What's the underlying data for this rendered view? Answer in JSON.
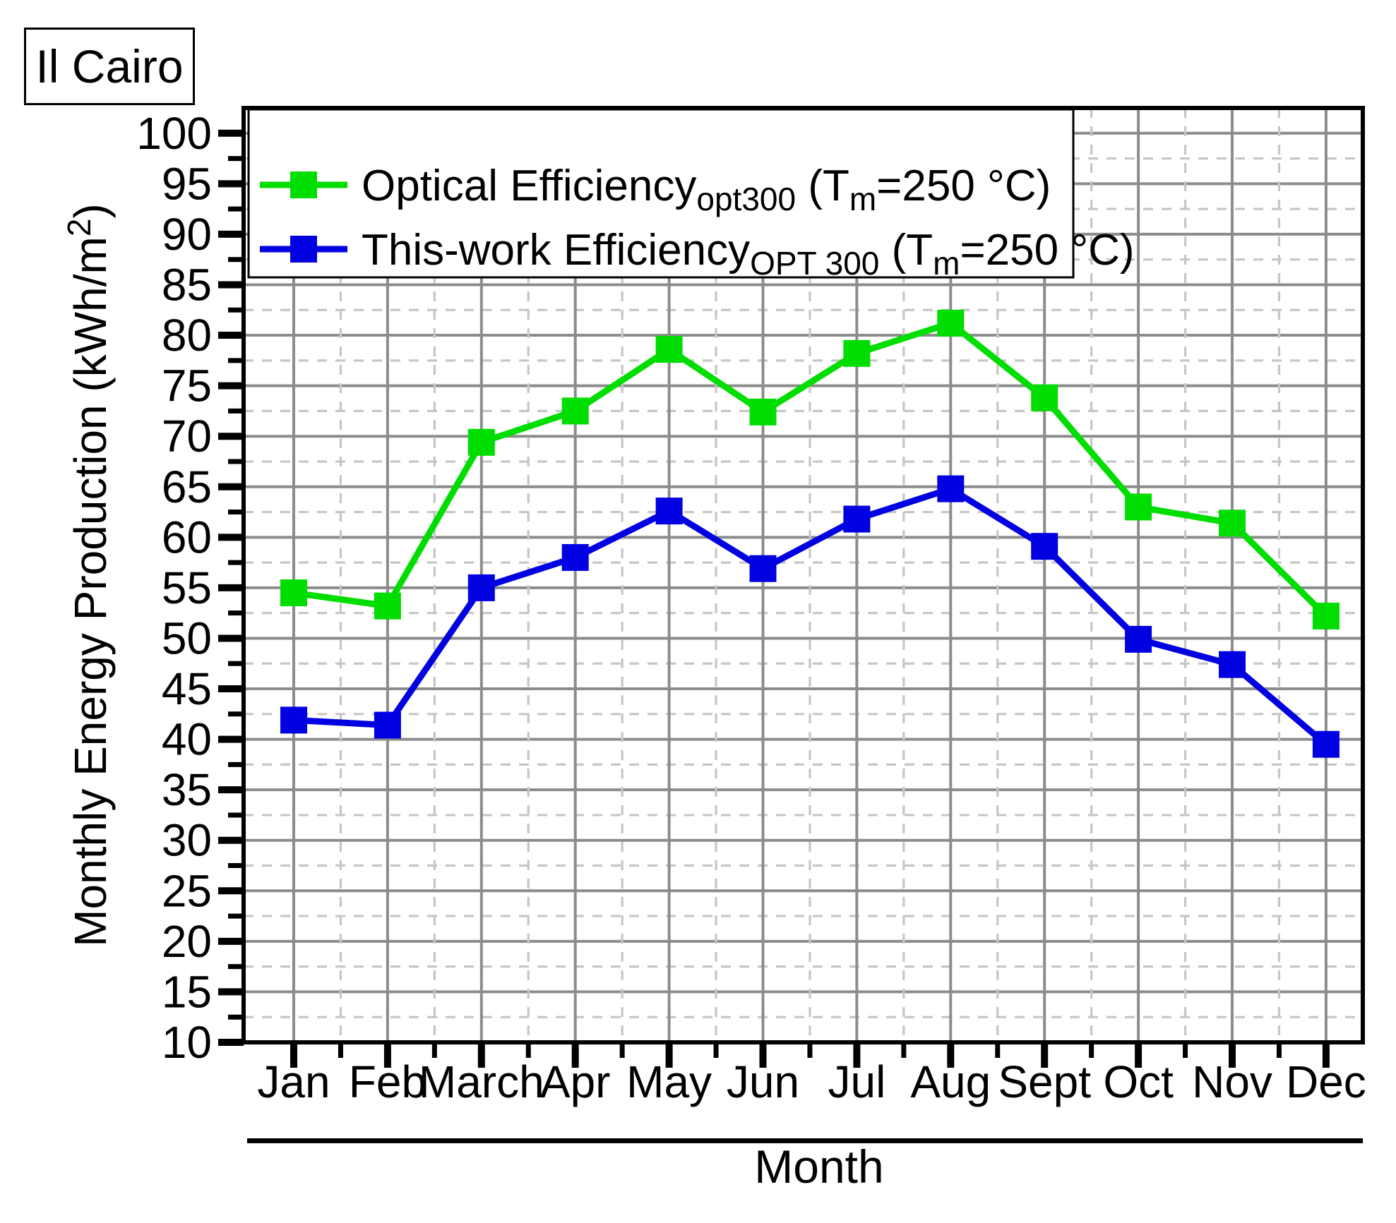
{
  "title": "Il Cairo",
  "chart_data": {
    "type": "line",
    "title_box": "Il Cairo",
    "xlabel": "Month",
    "ylabel_parts": [
      {
        "t": "Monthly Energy Production (kWh/m"
      },
      {
        "sup": "2"
      },
      {
        "t": ")"
      }
    ],
    "x_categories": [
      "Jan",
      "Feb",
      "March",
      "Apr",
      "May",
      "Jun",
      "Jul",
      "Aug",
      "Sept",
      "Oct",
      "Nov",
      "Dec"
    ],
    "ylim": [
      10,
      102.5
    ],
    "ytick_min": 10,
    "ytick_max": 100,
    "ytick_step": 5,
    "yminor_step": 2.5,
    "grid": {
      "major_on": true,
      "minor_on": true,
      "minor_style": "dashed"
    },
    "legend_position": "top-left-inside",
    "series": [
      {
        "name_parts": [
          {
            "t": "Optical Efficiency"
          },
          {
            "sub": "opt300"
          },
          {
            "t": " (T"
          },
          {
            "sub": "m"
          },
          {
            "t": "=250 °C)"
          }
        ],
        "color": "#00dd00",
        "marker": "square",
        "values": [
          54.5,
          53.2,
          69.4,
          72.5,
          78.6,
          72.4,
          78.2,
          81.2,
          73.8,
          63.0,
          61.4,
          52.2
        ]
      },
      {
        "name_parts": [
          {
            "t": "This-work Efficiency"
          },
          {
            "sub": "OPT 300"
          },
          {
            "t": " (T"
          },
          {
            "sub": "m"
          },
          {
            "t": "=250 °C)"
          }
        ],
        "color": "#0000e0",
        "marker": "square",
        "values": [
          41.9,
          41.4,
          55.0,
          58.0,
          62.6,
          56.9,
          61.8,
          64.8,
          59.1,
          49.9,
          47.4,
          39.5
        ]
      }
    ],
    "colors": {
      "grid_major": "#8c8c8c",
      "grid_minor": "#c6c6c6",
      "axis": "#000000",
      "background": "#ffffff"
    }
  }
}
